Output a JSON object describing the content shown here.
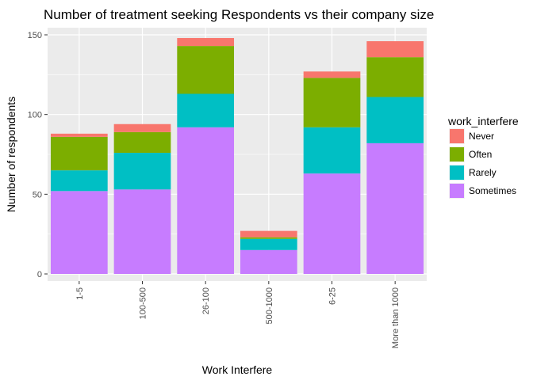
{
  "chart_data": {
    "type": "bar",
    "stacked": true,
    "title": "Number of treatment seeking Respondents vs their company size",
    "xlabel": "Work Interfere",
    "ylabel": "Number of respondents",
    "categories": [
      "1-5",
      "100-500",
      "26-100",
      "500-1000",
      "6-25",
      "More than 1000"
    ],
    "ylim": [
      0,
      155
    ],
    "yticks": [
      0,
      50,
      100,
      150
    ],
    "grid": true,
    "legend": {
      "title": "work_interfere",
      "placement": "right",
      "entries": [
        "Never",
        "Often",
        "Rarely",
        "Sometimes"
      ]
    },
    "series": [
      {
        "name": "Sometimes",
        "color": "#C77CFF",
        "values": [
          52,
          53,
          92,
          15,
          63,
          82
        ]
      },
      {
        "name": "Rarely",
        "color": "#00BFC4",
        "values": [
          13,
          23,
          21,
          7,
          29,
          29
        ]
      },
      {
        "name": "Often",
        "color": "#7CAE00",
        "values": [
          21,
          13,
          30,
          1,
          31,
          25
        ]
      },
      {
        "name": "Never",
        "color": "#F8766D",
        "values": [
          2,
          5,
          5,
          4,
          4,
          10
        ]
      }
    ]
  }
}
